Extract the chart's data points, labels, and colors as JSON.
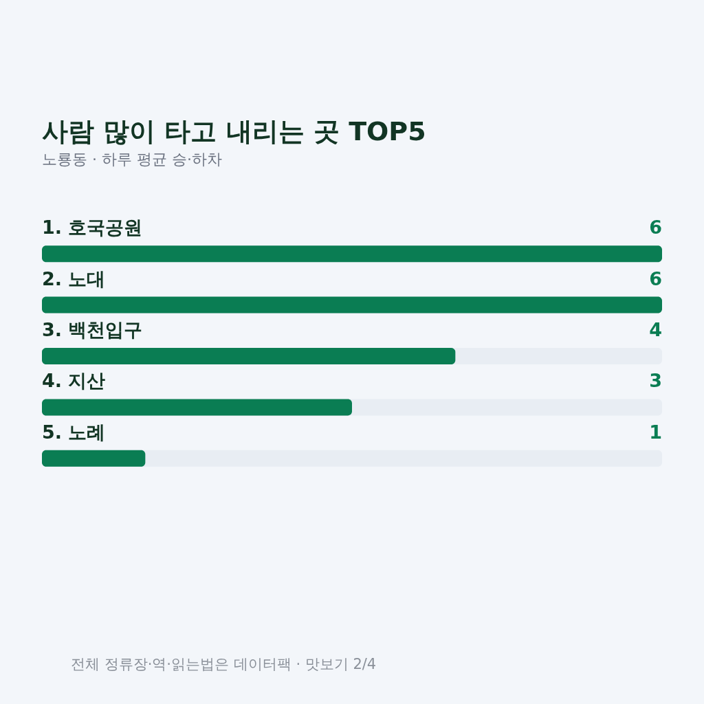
{
  "chart_data": {
    "type": "bar",
    "orientation": "horizontal",
    "title": "사람 많이 타고 내리는 곳 TOP5",
    "subtitle": "노룡동 · 하루 평균 승·하차",
    "categories": [
      "1. 호국공원",
      "2. 노대",
      "3. 백천입구",
      "4. 지산",
      "5. 노례"
    ],
    "values": [
      6,
      6,
      4,
      3,
      1
    ],
    "color": "#0a7d53",
    "xlim": [
      0,
      6
    ],
    "tick_labels": false,
    "data_labels": true,
    "annotations": [
      "전체 정류장·역·읽는법은 데이터팩 · 맛보기 2/4"
    ]
  }
}
